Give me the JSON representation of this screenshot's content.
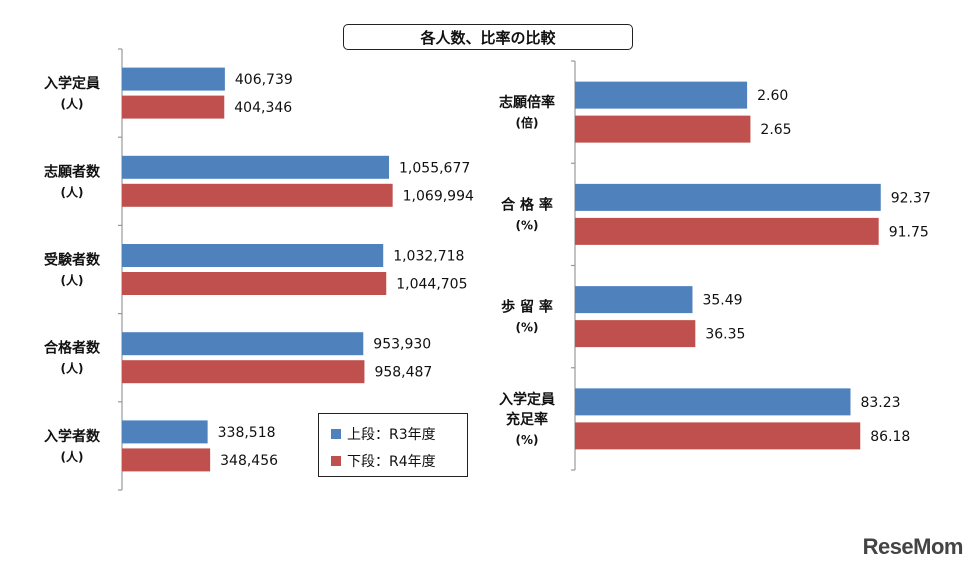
{
  "title": "各人数、比率の比較",
  "colors": {
    "r3": "#4F81BD",
    "r4": "#C0504D",
    "axis": "#999999",
    "text": "#111111"
  },
  "legend": [
    {
      "label": "上段：R3年度",
      "color": "#4F81BD"
    },
    {
      "label": "下段：R4年度",
      "color": "#C0504D"
    }
  ],
  "watermark": "ReseMom",
  "chart_data": [
    {
      "type": "bar",
      "orientation": "horizontal",
      "categories": [
        [
          "入学定員",
          "(人)"
        ],
        [
          "志願者数",
          "(人)"
        ],
        [
          "受験者数",
          "(人)"
        ],
        [
          "合格者数",
          "(人)"
        ],
        [
          "入学者数",
          "(人)"
        ]
      ],
      "series": [
        {
          "name": "上段：R3年度",
          "values": [
            406739,
            1055677,
            1032718,
            953930,
            338518
          ],
          "labels": [
            "406,739",
            "1,055,677",
            "1,032,718",
            "953,930",
            "338,518"
          ]
        },
        {
          "name": "下段：R4年度",
          "values": [
            404346,
            1069994,
            1044705,
            958487,
            348456
          ],
          "labels": [
            "404,346",
            "1,069,994",
            "1,044,705",
            "958,487",
            "348,456"
          ]
        }
      ],
      "xlim": [
        0,
        1700000
      ]
    },
    {
      "type": "bar",
      "orientation": "horizontal",
      "categories": [
        [
          "志願倍率",
          "(倍)"
        ],
        [
          "合 格 率",
          "(%)"
        ],
        [
          "歩 留 率",
          "(%)"
        ],
        [
          "入学定員",
          "充足率",
          "(%)"
        ]
      ],
      "series": [
        {
          "name": "上段：R3年度",
          "values": [
            2.6,
            92.37,
            35.49,
            83.23
          ],
          "labels": [
            "2.60",
            "92.37",
            "35.49",
            "83.23"
          ]
        },
        {
          "name": "下段：R4年度",
          "values": [
            2.65,
            91.75,
            36.35,
            86.18
          ],
          "labels": [
            "2.65",
            "91.75",
            "36.35",
            "86.18"
          ]
        }
      ],
      "xlim_by_category": [
        [
          0,
          5
        ],
        [
          0,
          100
        ],
        [
          0,
          100
        ],
        [
          0,
          100
        ]
      ]
    }
  ]
}
